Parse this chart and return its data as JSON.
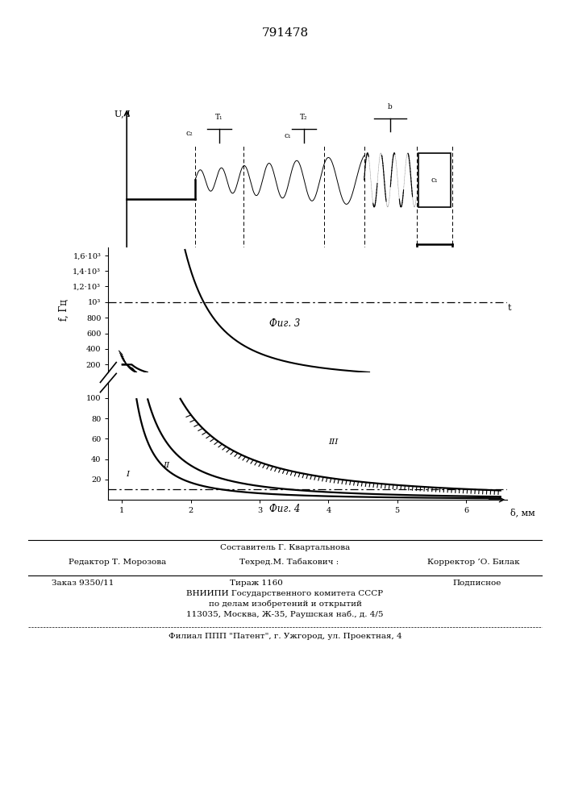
{
  "patent_number": "791478",
  "fig3_caption": "Фиг. 3",
  "fig4_caption": "Фиг. 4",
  "fig4_ylabel": "f, Гц",
  "fig4_xlabel": "δ, мм",
  "background_color": "#ffffff",
  "footer": {
    "line1": "Составитель Г. Квартальнова",
    "line2_left": "Редактор Т. Морозова",
    "line2_mid": "Техред.М. Табакович :",
    "line2_right": "Корректор ’О. Билак",
    "line3_left": "Заказ 9350/11",
    "line3_mid": "Тираж 1160",
    "line3_right": "Подписное",
    "line4": "ВНИИПИ Государственного комитета СССР",
    "line5": "по делам изобретений и открытий",
    "line6": "113035, Москва, Ж-35, Раушская наб., д. 4/5",
    "line7": "Филиал ППП \"Патент\", г. Ужгород, ул. Проектная, 4"
  }
}
